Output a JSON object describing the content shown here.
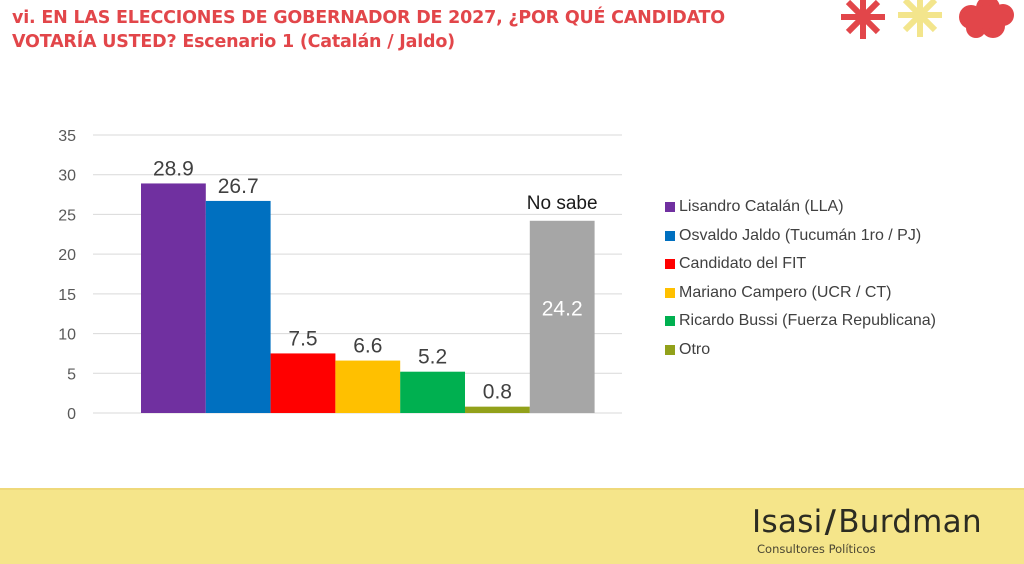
{
  "header": {
    "title_line1": "vi. EN LAS ELECCIONES DE GOBERNADOR DE 2027, ¿POR QUÉ CANDIDATO",
    "title_line2": "VOTARÍA USTED? Escenario 1 (Catalán / Jaldo)",
    "title_color": "#e2464a"
  },
  "logo_marks": [
    {
      "icon": "asterisk-icon",
      "color": "#e2464a"
    },
    {
      "icon": "asterisk-icon",
      "color": "#f3e58c"
    },
    {
      "icon": "flower-blob-icon",
      "color": "#e2464a"
    }
  ],
  "chart_data": {
    "type": "bar",
    "title": "",
    "xlabel": "",
    "ylabel": "",
    "ylim": [
      0,
      35
    ],
    "yticks": [
      0,
      5,
      10,
      15,
      20,
      25,
      30,
      35
    ],
    "grid": true,
    "legend_position": "right",
    "categories": [
      "Lisandro Catalán (LLA)",
      "Osvaldo Jaldo (Tucumán 1ro / PJ)",
      "Candidato del FIT",
      "Mariano Campero (UCR / CT)",
      "Ricardo Bussi (Fuerza Republicana)",
      "Otro",
      "No sabe"
    ],
    "values": [
      28.9,
      26.7,
      7.5,
      6.6,
      5.2,
      0.8,
      24.2
    ],
    "colors": [
      "#7030a0",
      "#0070c0",
      "#ff0000",
      "#ffc000",
      "#00b050",
      "#92a11a",
      "#a6a6a6"
    ],
    "data_labels": [
      "28.9",
      "26.7",
      "7.5",
      "6.6",
      "5.2",
      "0.8",
      "24.2"
    ],
    "annotations": [
      {
        "text": "No sabe",
        "target": "No sabe"
      }
    ],
    "legend": [
      {
        "label": "Lisandro Catalán (LLA)",
        "color": "#7030a0"
      },
      {
        "label": "Osvaldo Jaldo (Tucumán 1ro / PJ)",
        "color": "#0070c0"
      },
      {
        "label": "Candidato del FIT",
        "color": "#ff0000"
      },
      {
        "label": "Mariano Campero (UCR / CT)",
        "color": "#ffc000"
      },
      {
        "label": "Ricardo Bussi (Fuerza Republicana)",
        "color": "#00b050"
      },
      {
        "label": "Otro",
        "color": "#92a11a"
      }
    ]
  },
  "footer": {
    "brand_left": "Isasi",
    "brand_slash": "/",
    "brand_right": "Burdman",
    "subtitle": "Consultores Políticos",
    "background": "#f5e58a"
  }
}
